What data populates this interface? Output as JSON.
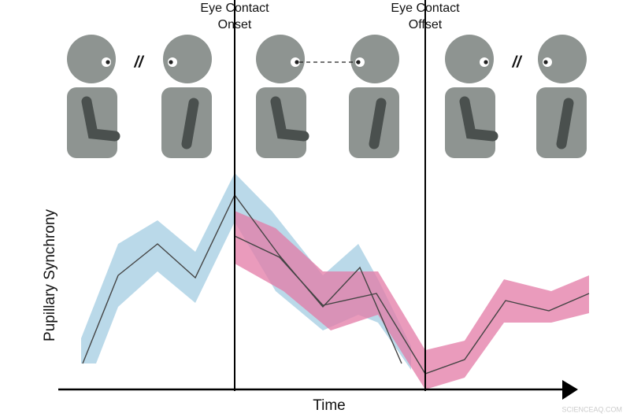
{
  "onset_label": [
    "Eye Contact",
    "Onset"
  ],
  "offset_label": [
    "Eye Contact",
    "Offset"
  ],
  "separator": "//",
  "y_axis_label": "Pupillary Synchrony",
  "x_axis_label": "Time",
  "watermark": "SCIENCEAQ.COM"
}
